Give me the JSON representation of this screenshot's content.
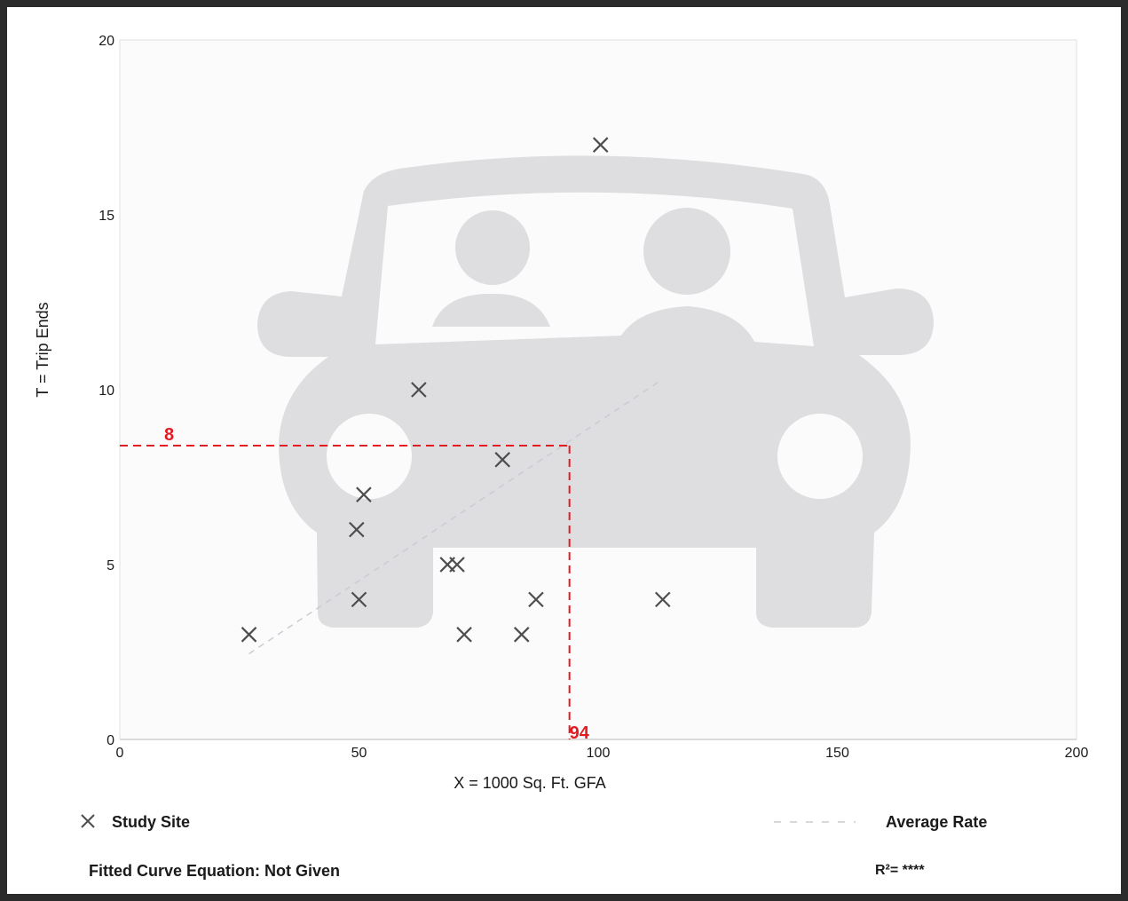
{
  "chart_data": {
    "type": "scatter",
    "xlabel": "X = 1000 Sq. Ft. GFA",
    "ylabel": "T = Trip Ends",
    "xlim": [
      0,
      200
    ],
    "ylim": [
      0,
      20
    ],
    "x_ticks": [
      0,
      50,
      100,
      150,
      200
    ],
    "y_ticks": [
      0,
      5,
      10,
      15,
      20
    ],
    "grid": false,
    "series": [
      {
        "name": "Study Site",
        "marker": "x",
        "color": "#4d4d4f",
        "points": [
          {
            "x": 27,
            "y": 3
          },
          {
            "x": 50,
            "y": 4
          },
          {
            "x": 49.5,
            "y": 6
          },
          {
            "x": 51,
            "y": 7
          },
          {
            "x": 62.5,
            "y": 10
          },
          {
            "x": 68.5,
            "y": 5
          },
          {
            "x": 70.5,
            "y": 5
          },
          {
            "x": 72,
            "y": 3
          },
          {
            "x": 80,
            "y": 8
          },
          {
            "x": 84,
            "y": 3
          },
          {
            "x": 87,
            "y": 4
          },
          {
            "x": 100.5,
            "y": 17
          },
          {
            "x": 113.5,
            "y": 4
          }
        ]
      },
      {
        "name": "Average Rate",
        "style": "dashed",
        "color": "#c8ccd4",
        "x": [
          27,
          113.5
        ],
        "y": [
          2.45,
          10.3
        ]
      }
    ],
    "annotation": {
      "x_value": 94,
      "y_value": 8.4,
      "x_label": "94",
      "y_label": "8",
      "color": "#e31b23"
    },
    "legend": {
      "study_site_label": "Study Site",
      "average_rate_label": "Average Rate",
      "placement": "bottom"
    },
    "fitted_curve_text": "Fitted Curve Equation: Not Given",
    "r_squared_text": "R²= ****"
  },
  "icons": {
    "background": "car-with-passengers-icon"
  }
}
